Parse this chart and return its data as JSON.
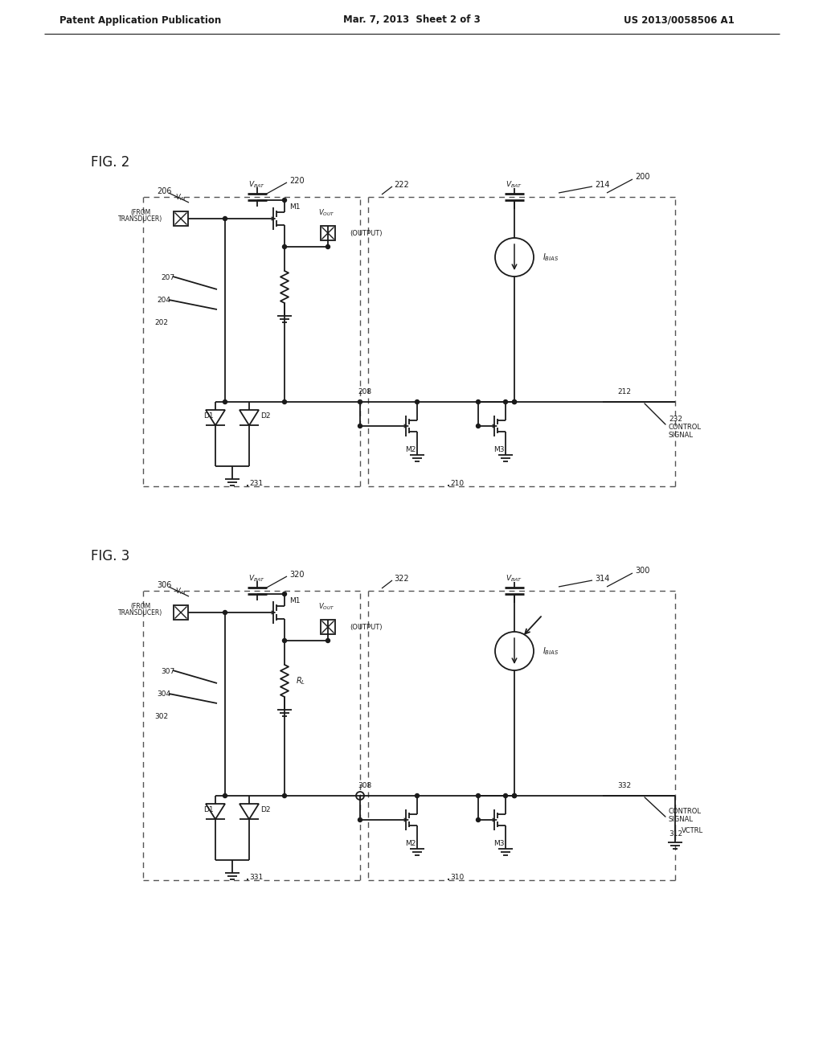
{
  "background_color": "#ffffff",
  "header_left": "Patent Application Publication",
  "header_center": "Mar. 7, 2013  Sheet 2 of 3",
  "header_right": "US 2013/0058506 A1",
  "fig2_label": "FIG. 2",
  "fig3_label": "FIG. 3",
  "line_color": "#1a1a1a",
  "text_color": "#1a1a1a",
  "dash_color": "#555555"
}
